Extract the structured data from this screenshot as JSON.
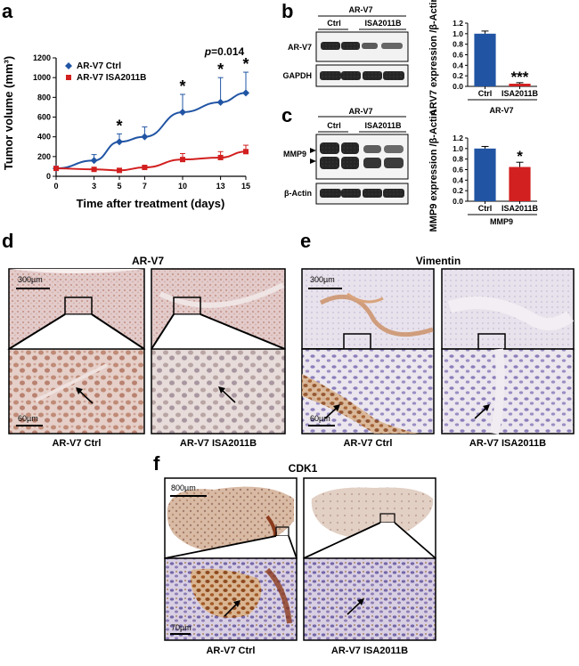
{
  "panels": {
    "a": "a",
    "b": "b",
    "c": "c",
    "d": "d",
    "e": "e",
    "f": "f"
  },
  "colors": {
    "ctrl": "#2155A4",
    "isa": "#D21F1F",
    "ihc_bg": "#E9D9DA",
    "ihc_brown": "#B9855F",
    "ihc_purple": "#8A7FB5"
  },
  "chart_data": [
    {
      "type": "line",
      "panel": "a",
      "x": [
        0,
        3,
        5,
        7,
        10,
        13,
        15
      ],
      "series": [
        {
          "name": "AR-V7 Ctrl",
          "values": [
            80,
            160,
            350,
            400,
            650,
            750,
            845
          ],
          "errors": [
            20,
            60,
            80,
            100,
            180,
            250,
            210
          ],
          "color": "#2155A4",
          "marker": "diamond"
        },
        {
          "name": "AR-V7 ISA2011B",
          "values": [
            80,
            70,
            60,
            90,
            170,
            190,
            250
          ],
          "errors": [
            15,
            15,
            10,
            15,
            60,
            60,
            65
          ],
          "color": "#D21F1F",
          "marker": "square"
        }
      ],
      "xlabel": "Time after treatment (days)",
      "ylabel": "Tumor volume (mm³)",
      "xticks": [
        "0",
        "3",
        "5",
        "7",
        "10",
        "13",
        "15"
      ],
      "yticks": [
        "0",
        "200",
        "400",
        "600",
        "800",
        "1000",
        "1200"
      ],
      "xlim": [
        0,
        15
      ],
      "ylim": [
        0,
        1200
      ],
      "significance": [
        {
          "x": 5,
          "label": "*"
        },
        {
          "x": 10,
          "label": "*"
        },
        {
          "x": 13,
          "label": "*"
        },
        {
          "x": 15,
          "label": "*"
        }
      ],
      "pvalue": "p=0.014",
      "legend": "top-left"
    },
    {
      "type": "bar",
      "panel": "b",
      "categories": [
        "Ctrl",
        "ISA2011B"
      ],
      "values": [
        1.0,
        0.05
      ],
      "errors": [
        0.05,
        0.02
      ],
      "colors": [
        "#2155A4",
        "#D21F1F"
      ],
      "significance": [
        "",
        "***"
      ],
      "ylabel": "ARV7 expression /β-Actin",
      "xlabel": "AR-V7",
      "yticks": [
        "0.0",
        "0.2",
        "0.4",
        "0.6",
        "0.8",
        "1.0",
        "1.2"
      ],
      "ylim": [
        0,
        1.2
      ]
    },
    {
      "type": "bar",
      "panel": "c",
      "categories": [
        "Ctrl",
        "ISA2011B"
      ],
      "values": [
        1.0,
        0.65
      ],
      "errors": [
        0.04,
        0.09
      ],
      "colors": [
        "#2155A4",
        "#D21F1F"
      ],
      "significance": [
        "",
        "*"
      ],
      "ylabel": "MMP9 expression /β-Actin",
      "xlabel": "MMP9",
      "yticks": [
        "0.0",
        "0.2",
        "0.4",
        "0.6",
        "0.8",
        "1.0",
        "1.2"
      ],
      "ylim": [
        0,
        1.2
      ]
    }
  ],
  "blot_b": {
    "header": "AR-V7",
    "lanes": [
      "Ctrl",
      "ISA2011B"
    ],
    "rows": [
      "AR-V7",
      "GAPDH"
    ]
  },
  "blot_c": {
    "header": "AR-V7",
    "lanes": [
      "Ctrl",
      "ISA2011B"
    ],
    "rows": [
      "MMP9",
      "β-Actin"
    ]
  },
  "ihc_d": {
    "title": "AR-V7",
    "scale_top": "300µm",
    "scale_bottom": "60µm",
    "captions": [
      "AR-V7 Ctrl",
      "AR-V7 ISA2011B"
    ]
  },
  "ihc_e": {
    "title": "Vimentin",
    "scale_top": "300µm",
    "scale_bottom": "60µm",
    "captions": [
      "AR-V7 Ctrl",
      "AR-V7 ISA2011B"
    ]
  },
  "ihc_f": {
    "title": "CDK1",
    "scale_top": "800µm",
    "scale_bottom": "70µm",
    "captions": [
      "AR-V7 Ctrl",
      "AR-V7 ISA2011B"
    ]
  }
}
